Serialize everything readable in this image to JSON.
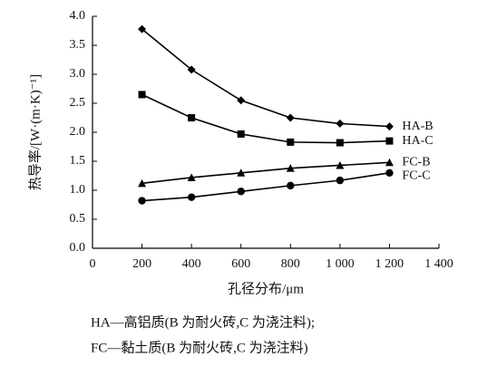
{
  "chart_data": {
    "type": "line",
    "x_label": "孔径分布/μm",
    "y_label": "热导率/[W·(m·K)⁻¹]",
    "x": [
      200,
      400,
      600,
      800,
      1000,
      1200
    ],
    "series": [
      {
        "name": "HA-B",
        "color": "#000000",
        "marker": "diamond",
        "values": [
          3.78,
          3.08,
          2.55,
          2.25,
          2.15,
          2.1
        ]
      },
      {
        "name": "HA-C",
        "color": "#000000",
        "marker": "square",
        "values": [
          2.65,
          2.25,
          1.97,
          1.83,
          1.82,
          1.85
        ]
      },
      {
        "name": "FC-B",
        "color": "#000000",
        "marker": "triangle",
        "values": [
          1.12,
          1.22,
          1.3,
          1.38,
          1.43,
          1.48
        ]
      },
      {
        "name": "FC-C",
        "color": "#000000",
        "marker": "circle",
        "values": [
          0.82,
          0.88,
          0.98,
          1.08,
          1.17,
          1.3
        ]
      }
    ],
    "xlim": [
      0,
      1400
    ],
    "xticks": [
      0,
      200,
      400,
      600,
      800,
      {
        "value": 1000,
        "label": "1 000"
      },
      {
        "value": 1200,
        "label": "1 200"
      },
      {
        "value": 1400,
        "label": "1 400"
      }
    ],
    "ylim": [
      0,
      4
    ],
    "yticks": [
      {
        "value": 0,
        "label": "0.0"
      },
      0.5,
      {
        "value": 1,
        "label": "1.0"
      },
      1.5,
      {
        "value": 2,
        "label": "2.0"
      },
      2.5,
      {
        "value": 3,
        "label": "3.0"
      },
      3.5,
      {
        "value": 4,
        "label": "4.0"
      }
    ],
    "notes": [
      "HA—高铝质(B 为耐火砖,C 为浇注料);",
      "FC—黏土质(B 为耐火砖,C 为浇注料)"
    ]
  }
}
